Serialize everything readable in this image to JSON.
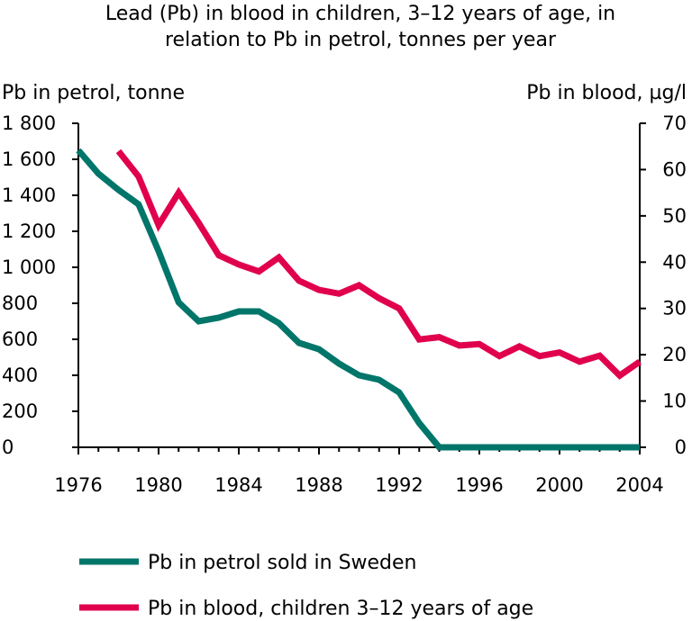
{
  "chart_data": {
    "type": "line",
    "title": "Lead (Pb) in blood in children, 3–12 years of age, in relation to Pb in petrol, tonnes per year",
    "title_lines": [
      "Lead (Pb) in blood in children, 3–12 years of age, in",
      "relation to Pb in petrol, tonnes per year"
    ],
    "ylabel_left": "Pb in petrol, tonne",
    "ylabel_right": "Pb in blood, µg/l",
    "xlim": [
      1976,
      2004
    ],
    "ylim_left": [
      0,
      1800
    ],
    "ylim_right": [
      0,
      70
    ],
    "x_ticks": [
      1976,
      1980,
      1984,
      1988,
      1992,
      1996,
      2000,
      2004
    ],
    "x_tick_labels": [
      "1976",
      "1980",
      "1984",
      "1988",
      "1992",
      "1996",
      "2000",
      "2004"
    ],
    "left_ticks": [
      0,
      200,
      400,
      600,
      800,
      1000,
      1200,
      1400,
      1600,
      1800
    ],
    "left_tick_labels": [
      "0",
      "200",
      "400",
      "600",
      "800",
      "1 000",
      "1 200",
      "1 400",
      "1 600",
      "1 800"
    ],
    "right_ticks": [
      0,
      10,
      20,
      30,
      40,
      50,
      60,
      70
    ],
    "right_tick_labels": [
      "0",
      "10",
      "20",
      "30",
      "40",
      "50",
      "60",
      "70"
    ],
    "grid": false,
    "legend_position": "bottom",
    "series": [
      {
        "name": "Pb in petrol sold in Sweden",
        "axis": "left",
        "color": "#00756A",
        "x": [
          1976,
          1977,
          1978,
          1979,
          1980,
          1981,
          1982,
          1983,
          1984,
          1985,
          1986,
          1987,
          1988,
          1989,
          1990,
          1991,
          1992,
          1993,
          1994,
          1995,
          1996,
          1997,
          1998,
          1999,
          2000,
          2001,
          2002,
          2003,
          2004
        ],
        "values": [
          1650,
          1520,
          1430,
          1350,
          1090,
          805,
          700,
          720,
          755,
          755,
          690,
          580,
          545,
          465,
          400,
          375,
          305,
          135,
          0,
          0,
          0,
          0,
          0,
          0,
          0,
          0,
          0,
          0,
          0
        ]
      },
      {
        "name": "Pb in blood, children 3–12 years of age",
        "axis": "right",
        "color": "#E0004D",
        "x": [
          1978,
          1979,
          1980,
          1981,
          1982,
          1983,
          1984,
          1985,
          1986,
          1987,
          1988,
          1989,
          1990,
          1991,
          1992,
          1993,
          1994,
          1995,
          1996,
          1997,
          1998,
          1999,
          2000,
          2001,
          2002,
          2003,
          2004
        ],
        "values": [
          64,
          58.5,
          48,
          55,
          48.5,
          41.5,
          39.5,
          38,
          41,
          36,
          34,
          33.2,
          35,
          32.2,
          30,
          23.3,
          23.8,
          22,
          22.3,
          19.7,
          21.8,
          19.7,
          20.5,
          18.5,
          19.8,
          15.5,
          18.5
        ]
      }
    ]
  }
}
